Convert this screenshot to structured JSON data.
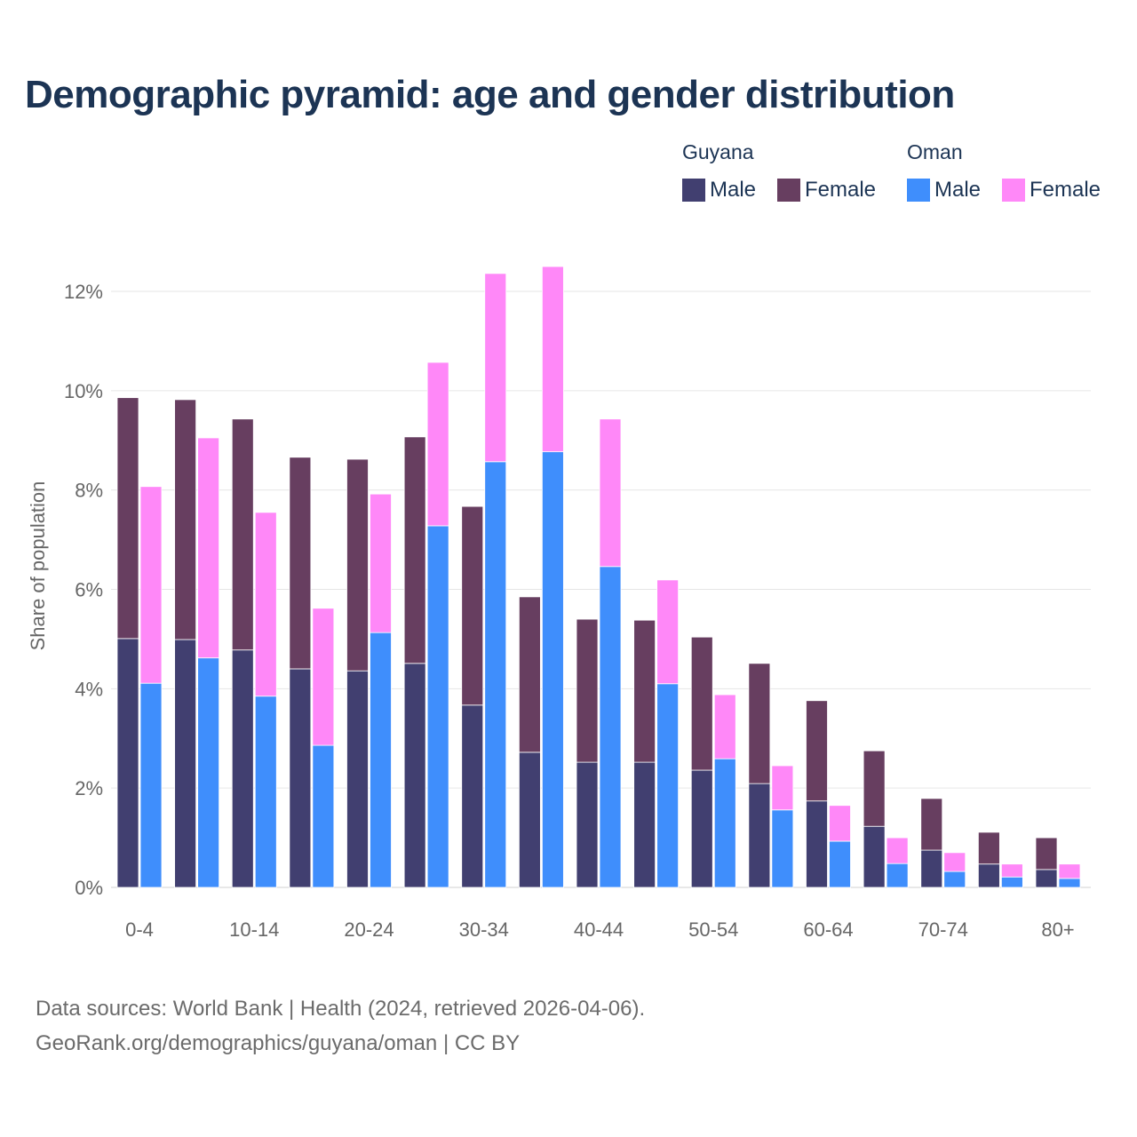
{
  "chart_data": {
    "type": "bar",
    "stacked": true,
    "title": "Demographic pyramid: age and gender distribution",
    "ylabel": "Share of population",
    "xlabel": "",
    "ylim": [
      0,
      12.5
    ],
    "y_ticks": [
      0,
      2,
      4,
      6,
      8,
      10,
      12
    ],
    "y_tick_labels": [
      "0%",
      "2%",
      "4%",
      "6%",
      "8%",
      "10%",
      "12%"
    ],
    "group_count": 17,
    "x_tick_labels": [
      {
        "index": 0,
        "label": "0-4"
      },
      {
        "index": 2,
        "label": "10-14"
      },
      {
        "index": 4,
        "label": "20-24"
      },
      {
        "index": 6,
        "label": "30-34"
      },
      {
        "index": 8,
        "label": "40-44"
      },
      {
        "index": 10,
        "label": "50-54"
      },
      {
        "index": 12,
        "label": "60-64"
      },
      {
        "index": 14,
        "label": "70-74"
      },
      {
        "index": 16,
        "label": "80+"
      }
    ],
    "grid": true,
    "legend_placement": "top-right",
    "countries": [
      {
        "name": "Guyana",
        "series": [
          {
            "name": "Male",
            "color": "#413f70",
            "values": [
              5.01,
              4.99,
              4.78,
              4.4,
              4.36,
              4.51,
              3.67,
              2.72,
              2.52,
              2.52,
              2.36,
              2.09,
              1.74,
              1.23,
              0.75,
              0.47,
              0.36
            ]
          },
          {
            "name": "Female",
            "color": "#673e60",
            "values": [
              4.85,
              4.83,
              4.65,
              4.26,
              4.26,
              4.56,
              4.0,
              3.13,
              2.88,
              2.86,
              2.68,
              2.42,
              2.02,
              1.52,
              1.04,
              0.64,
              0.64
            ]
          }
        ]
      },
      {
        "name": "Oman",
        "series": [
          {
            "name": "Male",
            "color": "#3f8efc",
            "values": [
              4.11,
              4.62,
              3.85,
              2.86,
              5.13,
              7.28,
              8.57,
              8.77,
              6.46,
              4.1,
              2.59,
              1.56,
              0.93,
              0.48,
              0.32,
              0.21,
              0.18
            ]
          },
          {
            "name": "Female",
            "color": "#ff88f8",
            "values": [
              3.96,
              4.43,
              3.7,
              2.76,
              2.79,
              3.29,
              3.79,
              3.73,
              2.97,
              2.09,
              1.29,
              0.89,
              0.72,
              0.52,
              0.38,
              0.26,
              0.29
            ]
          }
        ]
      }
    ]
  },
  "source": {
    "line1": "Data sources: World Bank | Health (2024, retrieved 2026-04-06).",
    "line2": "GeoRank.org/demographics/guyana/oman | CC BY"
  }
}
